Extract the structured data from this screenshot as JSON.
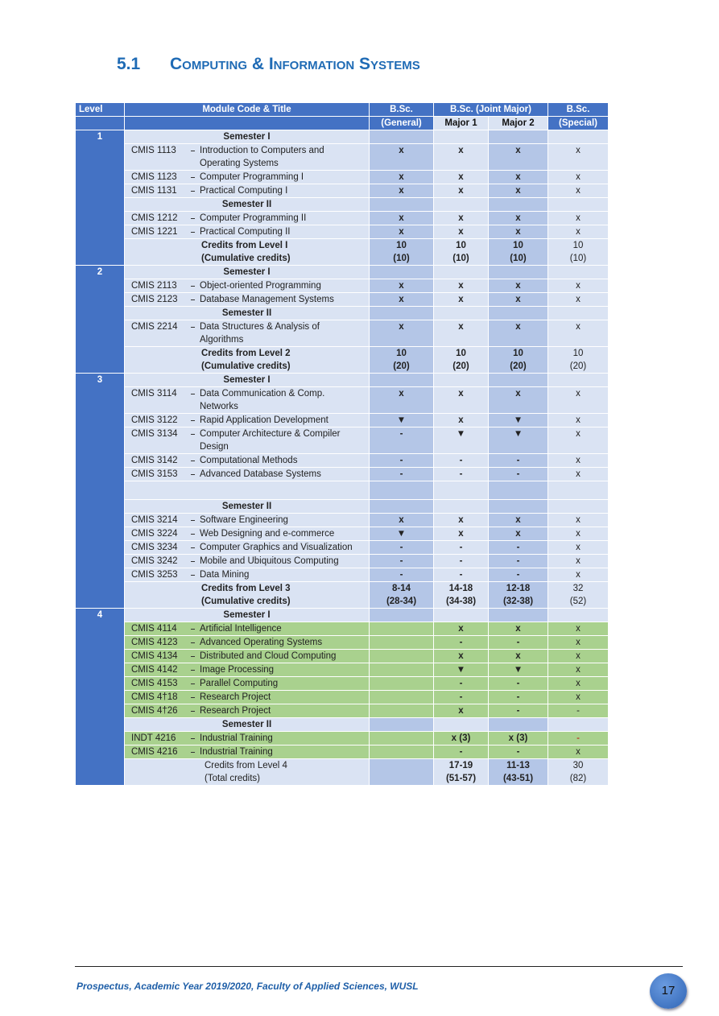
{
  "heading": {
    "number": "5.1",
    "title": "Computing & Information Systems"
  },
  "table": {
    "header": {
      "level": "Level",
      "module": "Module Code & Title",
      "general": [
        "B.Sc.",
        "(General)"
      ],
      "joint": "B.Sc.  (Joint Major)",
      "major1": "Major 1",
      "major2": "Major 2",
      "special": [
        "B.Sc.",
        "(Special)"
      ]
    },
    "levels": [
      {
        "level": "1",
        "rows": [
          {
            "semester": "Semester I"
          },
          {
            "code": "CMIS 1113",
            "title": "Introduction to Computers and Operating Systems",
            "cells": [
              "x",
              "x",
              "x",
              "x"
            ]
          },
          {
            "code": "CMIS 1123",
            "title": "Computer Programming I",
            "cells": [
              "x",
              "x",
              "x",
              "x"
            ]
          },
          {
            "code": "CMIS 1131",
            "title": "Practical Computing  I",
            "cells": [
              "x",
              "x",
              "x",
              "x"
            ]
          },
          {
            "semester": "Semester II"
          },
          {
            "code": "CMIS 1212",
            "title": "Computer Programming II",
            "cells": [
              "x",
              "x",
              "x",
              "x"
            ]
          },
          {
            "code": "CMIS 1221",
            "title": "Practical Computing  II",
            "cells": [
              "x",
              "x",
              "x",
              "x"
            ]
          },
          {
            "credits": [
              "Credits from Level  I",
              "(Cumulative credits)"
            ],
            "bold": true,
            "cells": [
              [
                "10",
                "(10)"
              ],
              [
                "10",
                "(10)"
              ],
              [
                "10",
                "(10)"
              ],
              [
                "10",
                "(10)"
              ]
            ]
          }
        ]
      },
      {
        "level": "2",
        "rows": [
          {
            "semester": "Semester I"
          },
          {
            "code": "CMIS 2113",
            "title": "Object-oriented  Programming",
            "cells": [
              "x",
              "x",
              "x",
              "x"
            ]
          },
          {
            "code": "CMIS 2123",
            "title": "Database Management Systems",
            "cells": [
              "x",
              "x",
              "x",
              "x"
            ]
          },
          {
            "semester": "Semester II"
          },
          {
            "code": "CMIS 2214",
            "title": " Data Structures & Analysis of Algorithms",
            "cells": [
              "x",
              "x",
              "x",
              "x"
            ]
          },
          {
            "credits": [
              "Credits from Level  2",
              "(Cumulative credits)"
            ],
            "bold": true,
            "cells": [
              [
                "10",
                "(20)"
              ],
              [
                "10",
                "(20)"
              ],
              [
                "10",
                "(20)"
              ],
              [
                "10",
                "(20)"
              ]
            ]
          }
        ]
      },
      {
        "level": "3",
        "rows": [
          {
            "semester": "Semester I"
          },
          {
            "code": "CMIS 3114",
            "title": "Data Communication & Comp. Networks",
            "cells": [
              "x",
              "x",
              "x",
              "x"
            ]
          },
          {
            "code": "CMIS 3122",
            "title": "Rapid Application Development",
            "cells": [
              "▼",
              "x",
              "▼",
              "x"
            ]
          },
          {
            "code": "CMIS 3134",
            "title": "Computer Architecture & Compiler Design",
            "cells": [
              "-",
              "▼",
              "▼",
              "x"
            ]
          },
          {
            "code": "CMIS 3142",
            "title": "Computational Methods",
            "cells": [
              "-",
              "-",
              "-",
              "x"
            ]
          },
          {
            "code": "CMIS 3153",
            "title": "Advanced Database Systems",
            "cells": [
              "-",
              "-",
              "-",
              "x"
            ]
          },
          {},
          {
            "semester": "Semester II"
          },
          {
            "code": "CMIS 3214",
            "title": "Software Engineering",
            "cells": [
              "x",
              "x",
              "x",
              "x"
            ]
          },
          {
            "code": "CMIS 3224",
            "title": "Web Designing and e-commerce",
            "cells": [
              "▼",
              "x",
              "x",
              "x"
            ]
          },
          {
            "code": "CMIS 3234",
            "title": "Computer Graphics and Visualization",
            "cells": [
              "-",
              "-",
              "-",
              "x"
            ]
          },
          {
            "code": "CMIS 3242",
            "title": "Mobile and Ubiquitous Computing",
            "cells": [
              "-",
              "-",
              "-",
              "x"
            ]
          },
          {
            "code": "CMIS 3253",
            "title": "Data Mining",
            "cells": [
              "-",
              "-",
              "-",
              "x"
            ]
          },
          {
            "credits": [
              "Credits from Level  3",
              "(Cumulative credits)"
            ],
            "bold": true,
            "cells": [
              [
                "8-14",
                "(28-34)"
              ],
              [
                "14-18",
                "(34-38)"
              ],
              [
                "12-18",
                "(32-38)"
              ],
              [
                "32",
                "(52)"
              ]
            ]
          }
        ]
      },
      {
        "level": "4",
        "module_color": "#a9d18e",
        "rows": [
          {
            "semester": "Semester I"
          },
          {
            "code": "CMIS 4114",
            "title": "Artificial Intelligence",
            "cells": [
              null,
              "x",
              "x",
              "x"
            ]
          },
          {
            "code": "CMIS 4123",
            "title": "Advanced Operating Systems",
            "cells": [
              null,
              "-",
              "-",
              "x"
            ]
          },
          {
            "code": "CMIS 4134",
            "title": "Distributed and Cloud Computing",
            "cells": [
              null,
              "x",
              "x",
              "x"
            ]
          },
          {
            "code": "CMIS 4142",
            "title": "Image Processing",
            "cells": [
              null,
              "▼",
              "▼",
              "x"
            ]
          },
          {
            "code": "CMIS 4153",
            "title": "Parallel Computing",
            "cells": [
              null,
              "-",
              "-",
              "x"
            ]
          },
          {
            "code": "CMIS 4†18",
            "title": "Research Project",
            "cells": [
              null,
              "-",
              "-",
              "x"
            ]
          },
          {
            "code": "CMIS 4†26",
            "title": "Research Project",
            "cells": [
              null,
              "x",
              "-",
              "-"
            ]
          },
          {
            "semester": "Semester II"
          },
          {
            "code": "INDT 4216",
            "title": "Industrial Training",
            "cells": [
              null,
              "x (3)",
              "x (3)",
              "-"
            ],
            "cell_colors": [
              null,
              null,
              null,
              "#c00000"
            ]
          },
          {
            "code": "CMIS 4216",
            "title": "Industrial Training",
            "cells": [
              null,
              "-",
              "-",
              "x"
            ]
          },
          {
            "credits": [
              "Credits from Level  4",
              "(Total credits)"
            ],
            "bold": false,
            "cells": [
              null,
              [
                "17-19",
                "(51-57)"
              ],
              [
                "11-13",
                "(43-51)"
              ],
              [
                "30",
                "(82)"
              ]
            ]
          }
        ]
      }
    ]
  },
  "footer": {
    "text": "Prospectus, Academic Year 2019/2020, Faculty of Applied Sciences, WUSL",
    "page": "17"
  }
}
